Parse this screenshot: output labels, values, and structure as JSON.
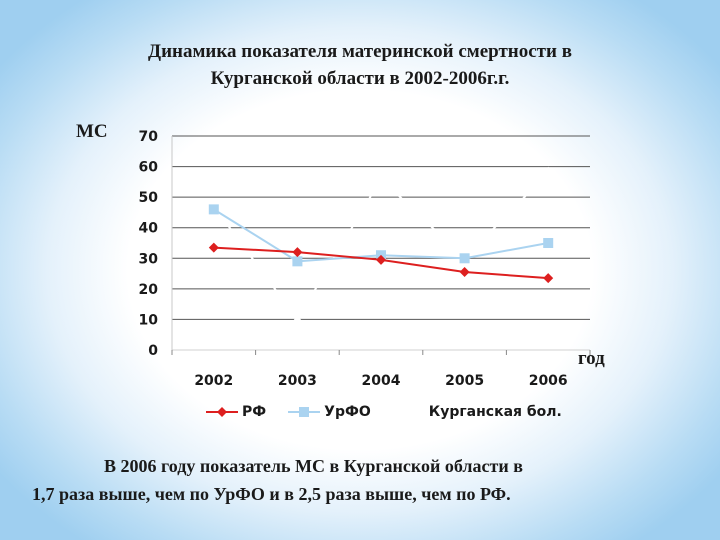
{
  "slide": {
    "title_line1": "Динамика показателя материнской смертности в",
    "title_line2": "Курганской области в 2002-2006г.г.",
    "summary_line1": "В 2006 году показатель МС в Курганской области в",
    "summary_line2": "1,7 раза выше, чем по УрФО и в 2,5 раза выше, чем по РФ."
  },
  "chart_data": {
    "type": "line",
    "title": "",
    "xlabel": "год",
    "ylabel": "МС",
    "categories": [
      "2002",
      "2003",
      "2004",
      "2005",
      "2006"
    ],
    "y_ticks": [
      "0",
      "10",
      "20",
      "30",
      "40",
      "50",
      "60",
      "70"
    ],
    "ylim": [
      0,
      70
    ],
    "grid": "horizontal",
    "legend_position": "bottom",
    "series": [
      {
        "name": "РФ",
        "values": [
          33.5,
          32,
          29.5,
          25.5,
          23.5
        ],
        "color": "#dd1f1f",
        "marker": "diamond"
      },
      {
        "name": "УрФО",
        "values": [
          46,
          29,
          31,
          30,
          35
        ],
        "color": "#aad3f0",
        "marker": "square"
      },
      {
        "name": "Курганская бол.",
        "values": [
          47,
          10,
          56,
          30,
          58
        ],
        "color": "#ffffff",
        "marker": "triangle"
      }
    ]
  }
}
